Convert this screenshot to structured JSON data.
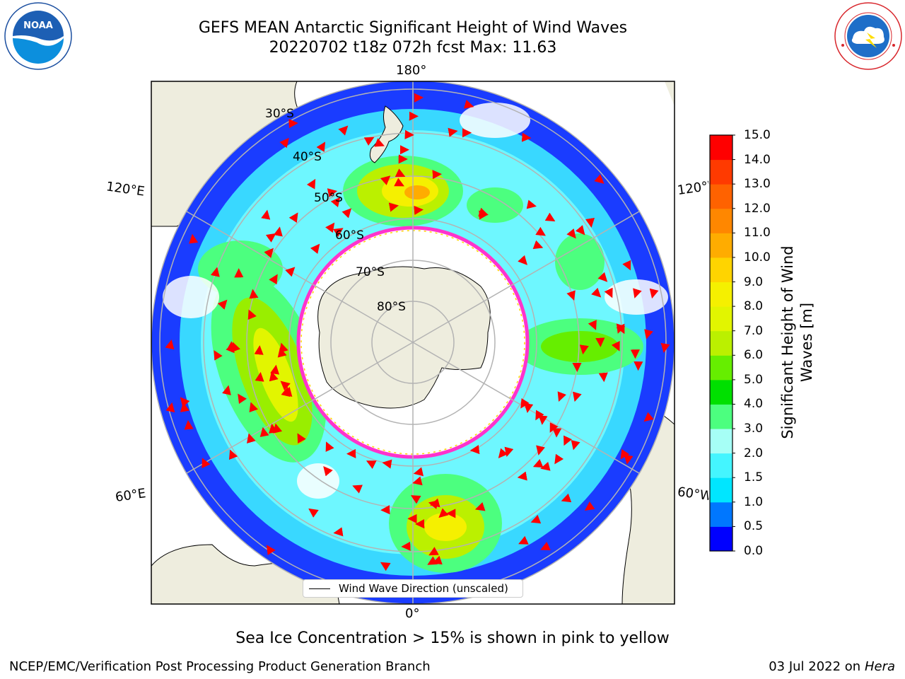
{
  "header": {
    "title_line1": "GEFS MEAN Antarctic Significant Height of Wind Waves",
    "title_line2": "20220702 t18z 072h fcst   Max: 11.63"
  },
  "logos": {
    "left": {
      "name": "NOAA",
      "text": "NOAA",
      "ring_text": "NATIONAL OCEANIC AND ATMOSPHERIC ADMINISTRATION · U.S. DEPARTMENT OF COMMERCE"
    },
    "right": {
      "name": "National Weather Service",
      "ring_text": "NATIONAL WEATHER SERVICE"
    }
  },
  "map": {
    "lon_labels": {
      "top": "180°",
      "bottom": "0°",
      "upper_left": "120°E",
      "upper_right": "120°W",
      "lower_left": "60°E",
      "lower_right": "60°W"
    },
    "lat_labels": [
      "30°S",
      "40°S",
      "50°S",
      "60°S",
      "70°S",
      "80°S"
    ],
    "legend_label": "Wind Wave Direction (unscaled)"
  },
  "colorbar": {
    "title": "Significant Height of Wind Waves [m]",
    "ticks": [
      "0.0",
      "0.5",
      "1.0",
      "1.5",
      "2.0",
      "3.0",
      "4.0",
      "5.0",
      "6.0",
      "7.0",
      "8.0",
      "9.0",
      "10.0",
      "11.0",
      "12.0",
      "13.0",
      "14.0",
      "15.0"
    ],
    "colors": [
      "#0000ff",
      "#0077ff",
      "#00e6ff",
      "#44f5ff",
      "#a6fff6",
      "#4cff7f",
      "#00e000",
      "#66ee00",
      "#bbf000",
      "#e2f500",
      "#f5f000",
      "#ffd400",
      "#ffac00",
      "#ff8700",
      "#ff6200",
      "#ff3a00",
      "#ff0000"
    ]
  },
  "notes": {
    "sea_ice": "Sea Ice Concentration > 15% is shown in pink to yellow",
    "footer_left": "NCEP/EMC/Verification Post Processing Product Generation Branch",
    "footer_date": "03 Jul 2022 on ",
    "footer_machine": "Hera"
  },
  "style": {
    "land": "#eeedde",
    "ice_edge": "#ff33cc",
    "arrow": "#ff0000",
    "grid": "#b3b3b3"
  }
}
